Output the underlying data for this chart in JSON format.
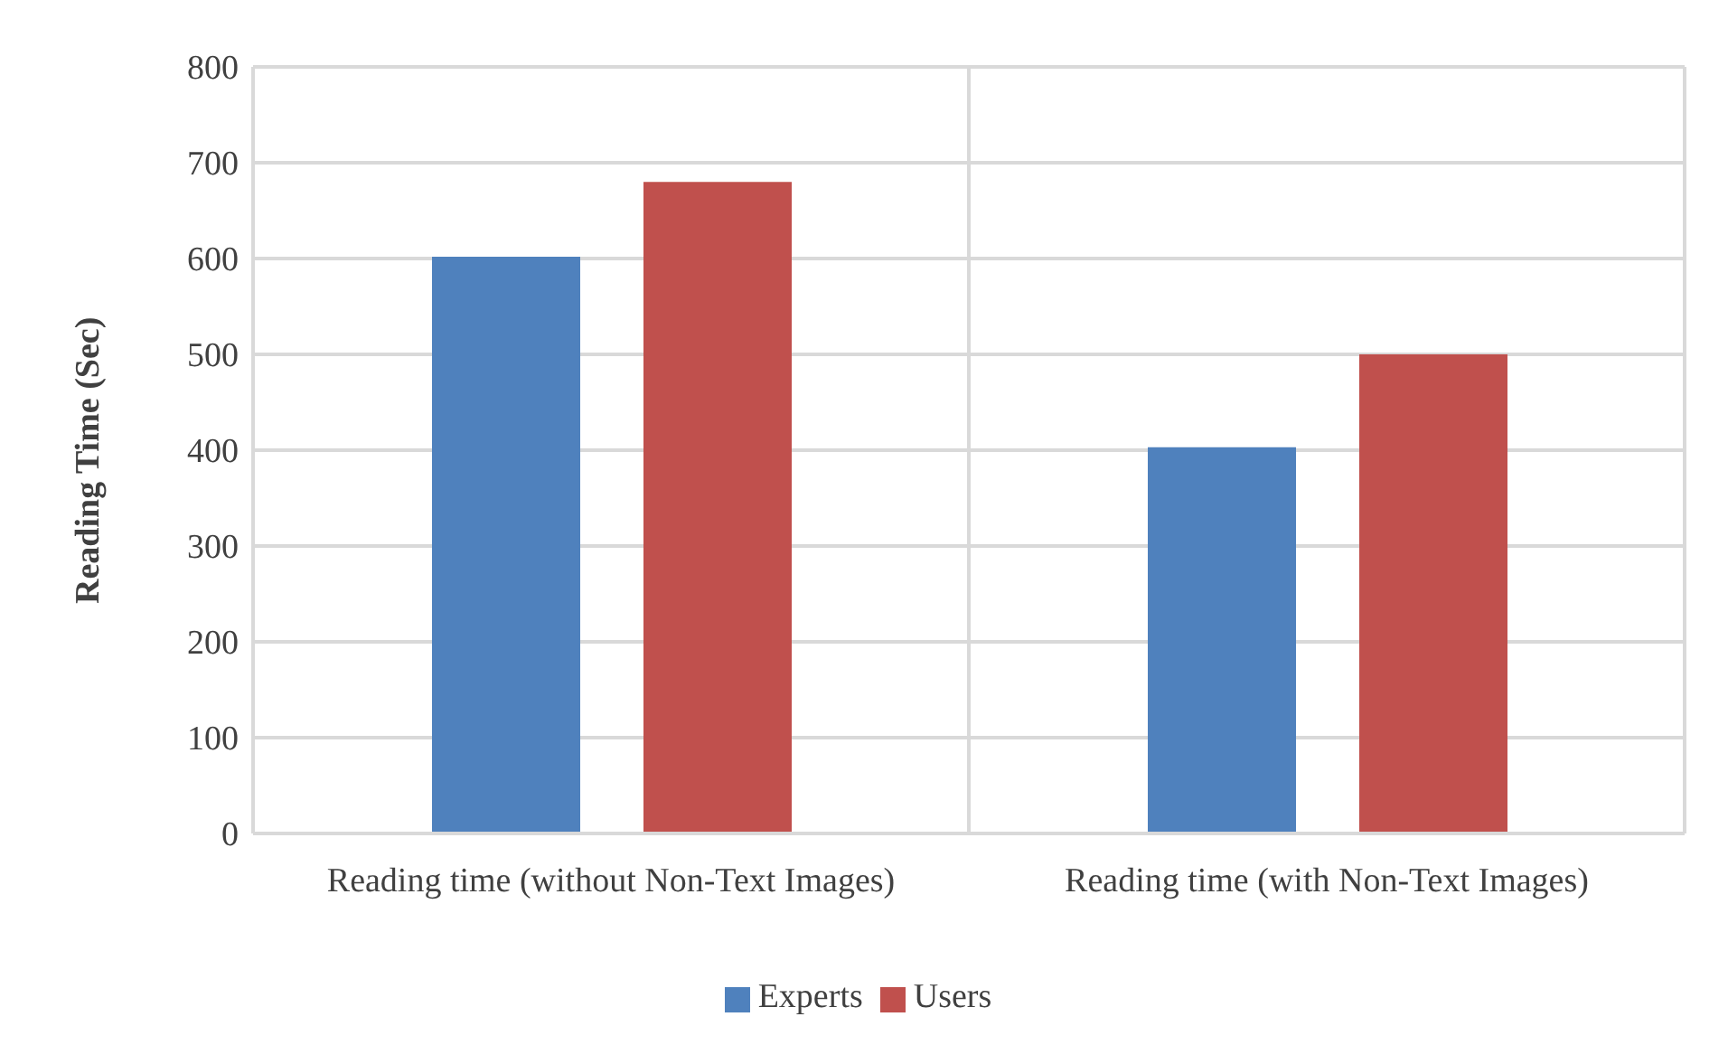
{
  "chart_data": {
    "type": "bar",
    "ylabel": "Reading Time (Sec)",
    "categories": [
      "Reading time (without Non-Text Images)",
      "Reading time (with Non-Text Images)"
    ],
    "series": [
      {
        "name": "Experts",
        "color": "#4f81bd",
        "values": [
          602,
          403
        ]
      },
      {
        "name": "Users",
        "color": "#c0504d",
        "values": [
          680,
          500
        ]
      }
    ],
    "ylim": [
      0,
      800
    ],
    "yticks": [
      0,
      100,
      200,
      300,
      400,
      500,
      600,
      700,
      800
    ],
    "grid": true,
    "legend": "bottom"
  }
}
